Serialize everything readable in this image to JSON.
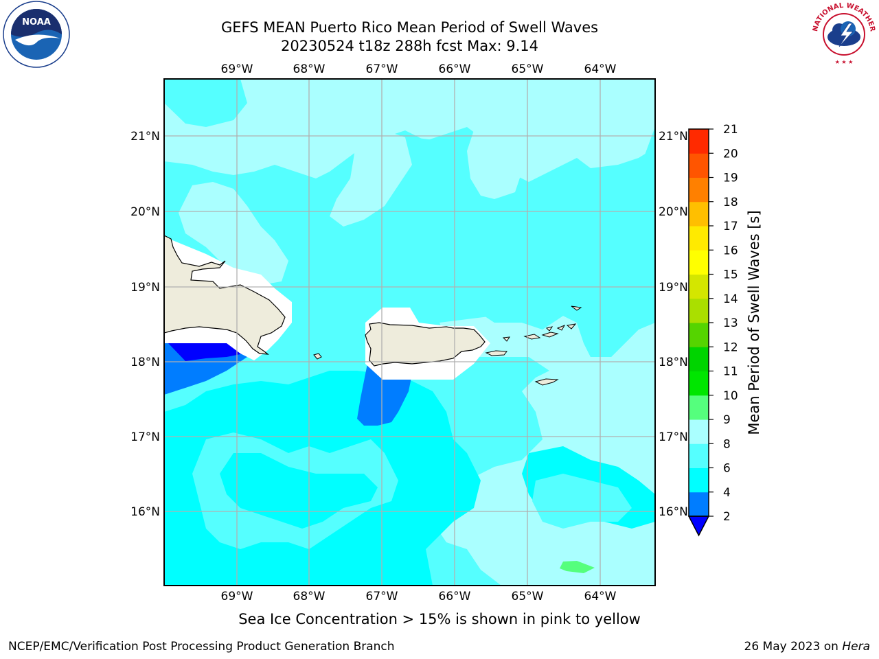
{
  "title": {
    "line1": "GEFS MEAN Puerto Rico Mean Period of Swell Waves",
    "line2": "20230524 t18z 288h fcst   Max: 9.14"
  },
  "colorbar": {
    "label": "Mean Period of Swell Waves [s]",
    "ticks": [
      "2",
      "4",
      "6",
      "8",
      "9",
      "10",
      "11",
      "12",
      "13",
      "14",
      "15",
      "16",
      "17",
      "18",
      "19",
      "20",
      "21"
    ],
    "colors": [
      "#0000ff",
      "#007dff",
      "#00ffff",
      "#55ffff",
      "#aaffff",
      "#55ff7d",
      "#00e600",
      "#00d400",
      "#55d400",
      "#aadf00",
      "#d4e600",
      "#ffff00",
      "#ffea00",
      "#ffbf00",
      "#ff8000",
      "#ff5500",
      "#ff2a00",
      "#ff0000"
    ]
  },
  "axes": {
    "top_lon_labels": [
      "69°W",
      "68°W",
      "67°W",
      "66°W",
      "65°W",
      "64°W"
    ],
    "bottom_lon_labels": [
      "69°W",
      "68°W",
      "67°W",
      "66°W",
      "65°W",
      "64°W"
    ],
    "left_lat_labels": [
      "21°N",
      "20°N",
      "19°N",
      "18°N",
      "17°N",
      "16°N"
    ],
    "right_lat_labels": [
      "21°N",
      "20°N",
      "19°N",
      "18°N",
      "17°N",
      "16°N"
    ]
  },
  "map": {
    "region": "Puerto Rico",
    "field": "Mean Period of Swell Waves",
    "max": 9.14
  },
  "subtitle": "Sea Ice Concentration > 15% is shown in pink to yellow",
  "footer": {
    "left": "NCEP/EMC/Verification Post Processing Product Generation Branch",
    "right_date": "26 May 2023 on ",
    "right_host": "Hera"
  },
  "logos": {
    "noaa_text": "NOAA",
    "nws_text": "NATIONAL WEATHER SERVICE"
  }
}
